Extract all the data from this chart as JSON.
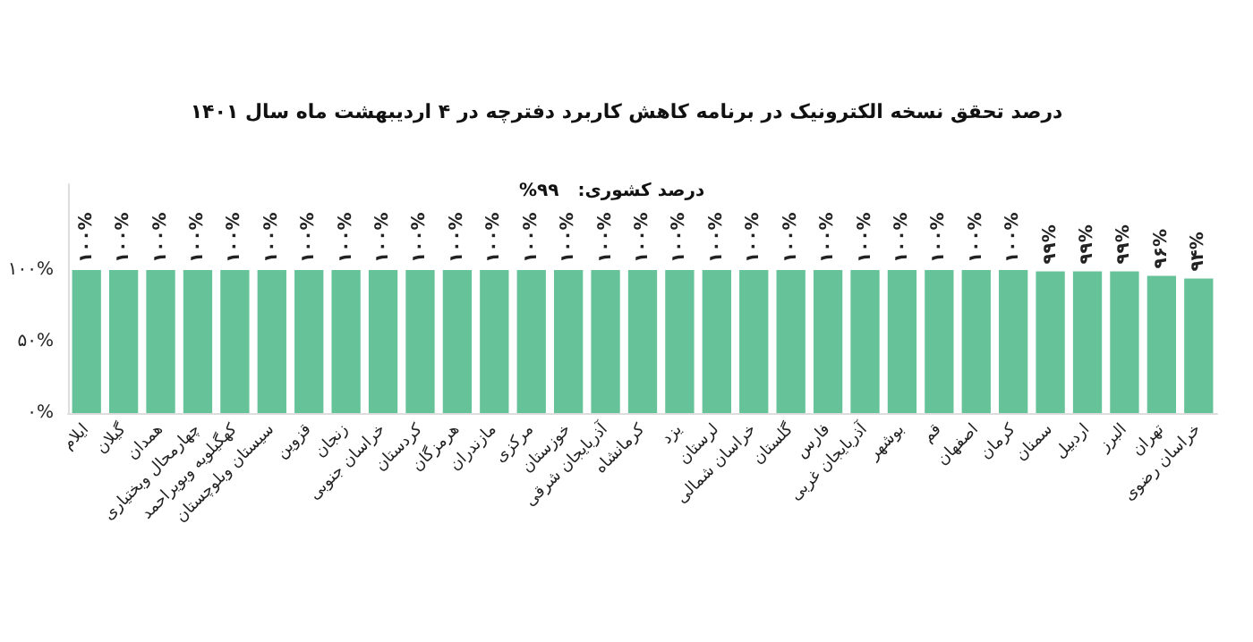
{
  "chart_data": {
    "type": "bar",
    "title": "درصد تحقق نسخه الکترونیک در برنامه کاهش کاربرد دفترچه در ۴ اردیبهشت ماه سال ۱۴۰۱",
    "annotations": [
      "درصد کشوری:   ۹۹%"
    ],
    "categories": [
      "ایلام",
      "گیلان",
      "همدان",
      "چهارمحال وبختیاری",
      "کهگیلویه وبویراحمد",
      "سیستان وبلوچستان",
      "قزوین",
      "زنجان",
      "خراسان جنوبی",
      "کردستان",
      "هرمزگان",
      "مازندران",
      "مرکزی",
      "خوزستان",
      "آذربایجان شرقی",
      "کرمانشاه",
      "یزد",
      "لرستان",
      "خراسان شمالی",
      "گلستان",
      "فارس",
      "آذربایجان غربی",
      "بوشهر",
      "قم",
      "اصفهان",
      "کرمان",
      "سمنان",
      "اردبیل",
      "البرز",
      "تهران",
      "خراسان رضوی"
    ],
    "values": [
      100,
      100,
      100,
      100,
      100,
      100,
      100,
      100,
      100,
      100,
      100,
      100,
      100,
      100,
      100,
      100,
      100,
      100,
      100,
      100,
      100,
      100,
      100,
      100,
      100,
      100,
      99,
      99,
      99,
      96,
      94
    ],
    "value_labels": [
      "۱۰۰%",
      "۱۰۰%",
      "۱۰۰%",
      "۱۰۰%",
      "۱۰۰%",
      "۱۰۰%",
      "۱۰۰%",
      "۱۰۰%",
      "۱۰۰%",
      "۱۰۰%",
      "۱۰۰%",
      "۱۰۰%",
      "۱۰۰%",
      "۱۰۰%",
      "۱۰۰%",
      "۱۰۰%",
      "۱۰۰%",
      "۱۰۰%",
      "۱۰۰%",
      "۱۰۰%",
      "۱۰۰%",
      "۱۰۰%",
      "۱۰۰%",
      "۱۰۰%",
      "۱۰۰%",
      "۱۰۰%",
      "۹۹%",
      "۹۹%",
      "۹۹%",
      "۹۶%",
      "۹۴%"
    ],
    "color": "#66c298",
    "ylim": [
      0,
      160
    ],
    "yticks": [
      {
        "value": 0,
        "label": "۰%"
      },
      {
        "value": 50,
        "label": "۵۰%"
      },
      {
        "value": 100,
        "label": "۱۰۰%"
      }
    ],
    "grid": false
  }
}
